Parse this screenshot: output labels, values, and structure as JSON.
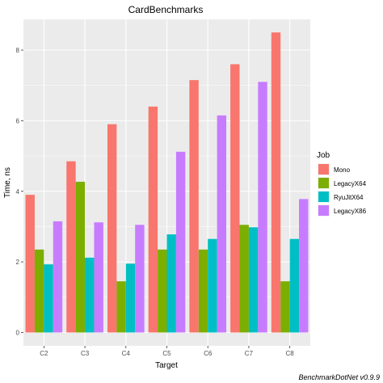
{
  "chart_data": {
    "type": "bar",
    "title": "CardBenchmarks",
    "xlabel": "Target",
    "ylabel": "Time, ns",
    "categories": [
      "C2",
      "C3",
      "C4",
      "C5",
      "C6",
      "C7",
      "C8"
    ],
    "ylim": [
      0,
      9
    ],
    "yticks": [
      0,
      2,
      4,
      6,
      8
    ],
    "grid": true,
    "legend": {
      "title": "Job",
      "position": "right"
    },
    "series": [
      {
        "name": "Mono",
        "color": "#F8766D",
        "values": [
          3.9,
          4.85,
          5.9,
          6.4,
          7.15,
          7.6,
          8.5
        ]
      },
      {
        "name": "LegacyX64",
        "color": "#7CAE00",
        "values": [
          2.35,
          4.27,
          1.45,
          2.35,
          2.35,
          3.05,
          1.45
        ]
      },
      {
        "name": "RyuJitX64",
        "color": "#00BFC4",
        "values": [
          1.93,
          2.12,
          1.95,
          2.78,
          2.65,
          2.98,
          2.65
        ]
      },
      {
        "name": "LegacyX86",
        "color": "#C77CFF",
        "values": [
          3.15,
          3.12,
          3.05,
          5.12,
          6.15,
          7.1,
          3.78
        ]
      }
    ],
    "caption": "BenchmarkDotNet v0.9.9",
    "background": "#EBEBEB",
    "gridline_color": "#FFFFFF"
  }
}
